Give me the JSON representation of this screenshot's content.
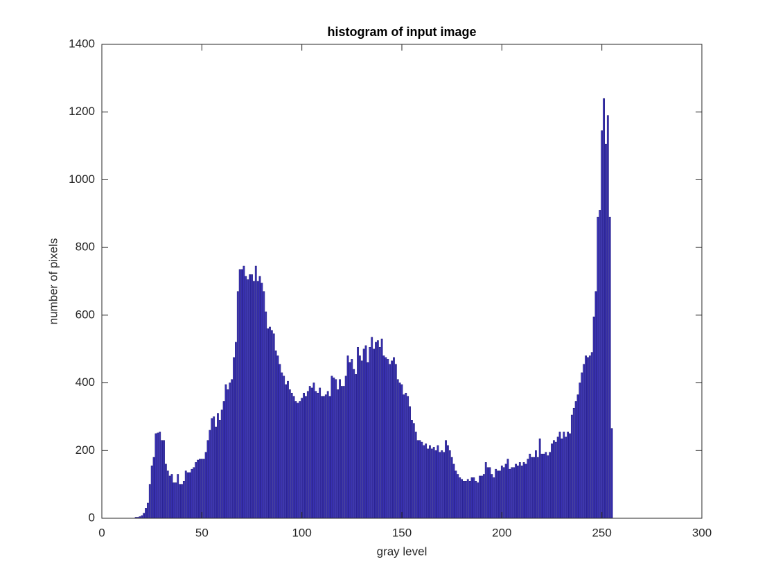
{
  "chart_data": {
    "type": "bar",
    "title": "histogram of input image",
    "x_label": "gray level",
    "y_label": "number of pixels",
    "color": "#3b33b8",
    "edge_color": "#1a1470",
    "xlim": [
      0,
      300
    ],
    "xticks": [
      0,
      50,
      100,
      150,
      200,
      250,
      300
    ],
    "ylim": [
      0,
      1400
    ],
    "yticks": [
      0,
      200,
      400,
      600,
      800,
      1000,
      1200,
      1400
    ],
    "grid": false,
    "x": [
      17,
      18,
      19,
      20,
      21,
      22,
      23,
      24,
      25,
      26,
      27,
      28,
      29,
      30,
      31,
      32,
      33,
      34,
      35,
      36,
      37,
      38,
      39,
      40,
      41,
      42,
      43,
      44,
      45,
      46,
      47,
      48,
      49,
      50,
      51,
      52,
      53,
      54,
      55,
      56,
      57,
      58,
      59,
      60,
      61,
      62,
      63,
      64,
      65,
      66,
      67,
      68,
      69,
      70,
      71,
      72,
      73,
      74,
      75,
      76,
      77,
      78,
      79,
      80,
      81,
      82,
      83,
      84,
      85,
      86,
      87,
      88,
      89,
      90,
      91,
      92,
      93,
      94,
      95,
      96,
      97,
      98,
      99,
      100,
      101,
      102,
      103,
      104,
      105,
      106,
      107,
      108,
      109,
      110,
      111,
      112,
      113,
      114,
      115,
      116,
      117,
      118,
      119,
      120,
      121,
      122,
      123,
      124,
      125,
      126,
      127,
      128,
      129,
      130,
      131,
      132,
      133,
      134,
      135,
      136,
      137,
      138,
      139,
      140,
      141,
      142,
      143,
      144,
      145,
      146,
      147,
      148,
      149,
      150,
      151,
      152,
      153,
      154,
      155,
      156,
      157,
      158,
      159,
      160,
      161,
      162,
      163,
      164,
      165,
      166,
      167,
      168,
      169,
      170,
      171,
      172,
      173,
      174,
      175,
      176,
      177,
      178,
      179,
      180,
      181,
      182,
      183,
      184,
      185,
      186,
      187,
      188,
      189,
      190,
      191,
      192,
      193,
      194,
      195,
      196,
      197,
      198,
      199,
      200,
      201,
      202,
      203,
      204,
      205,
      206,
      207,
      208,
      209,
      210,
      211,
      212,
      213,
      214,
      215,
      216,
      217,
      218,
      219,
      220,
      221,
      222,
      223,
      224,
      225,
      226,
      227,
      228,
      229,
      230,
      231,
      232,
      233,
      234,
      235,
      236,
      237,
      238,
      239,
      240,
      241,
      242,
      243,
      244,
      245,
      246,
      247,
      248,
      249,
      250,
      251,
      252,
      253,
      254,
      255
    ],
    "values": [
      3,
      3,
      5,
      8,
      15,
      30,
      45,
      100,
      155,
      180,
      250,
      252,
      255,
      230,
      230,
      160,
      140,
      125,
      130,
      105,
      105,
      130,
      100,
      100,
      110,
      140,
      135,
      135,
      145,
      150,
      165,
      172,
      175,
      175,
      175,
      195,
      230,
      260,
      295,
      300,
      270,
      310,
      290,
      320,
      345,
      395,
      380,
      400,
      410,
      475,
      520,
      670,
      735,
      735,
      745,
      715,
      705,
      720,
      720,
      700,
      745,
      700,
      715,
      695,
      670,
      610,
      560,
      565,
      555,
      545,
      495,
      480,
      455,
      430,
      420,
      395,
      405,
      380,
      370,
      360,
      345,
      340,
      345,
      355,
      370,
      360,
      375,
      390,
      385,
      400,
      375,
      370,
      385,
      360,
      360,
      365,
      375,
      360,
      420,
      415,
      410,
      380,
      410,
      390,
      390,
      420,
      480,
      460,
      470,
      440,
      425,
      505,
      480,
      465,
      500,
      510,
      460,
      505,
      535,
      500,
      520,
      525,
      505,
      530,
      480,
      475,
      470,
      455,
      465,
      475,
      455,
      410,
      400,
      395,
      365,
      370,
      360,
      330,
      290,
      280,
      255,
      230,
      230,
      225,
      215,
      220,
      205,
      215,
      205,
      210,
      200,
      215,
      195,
      200,
      195,
      230,
      215,
      200,
      180,
      160,
      140,
      130,
      120,
      115,
      110,
      110,
      115,
      110,
      120,
      120,
      110,
      105,
      125,
      125,
      130,
      165,
      150,
      150,
      130,
      120,
      145,
      140,
      140,
      155,
      150,
      160,
      175,
      145,
      150,
      150,
      160,
      155,
      165,
      155,
      165,
      160,
      175,
      190,
      180,
      180,
      200,
      180,
      235,
      190,
      190,
      195,
      185,
      195,
      220,
      230,
      225,
      240,
      255,
      235,
      255,
      240,
      255,
      250,
      305,
      325,
      345,
      365,
      400,
      430,
      455,
      480,
      475,
      480,
      490,
      595,
      670,
      890,
      910,
      1145,
      1240,
      1105,
      1190,
      890,
      265
    ]
  }
}
